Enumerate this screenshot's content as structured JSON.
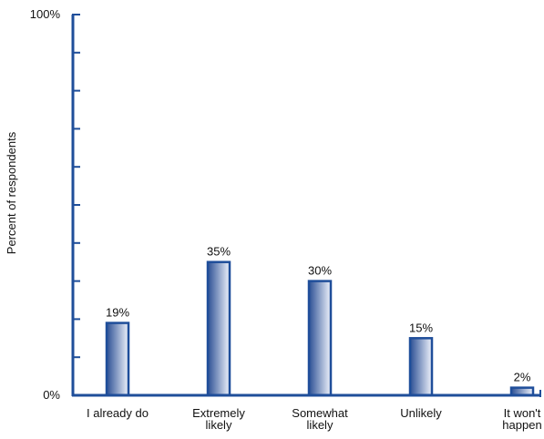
{
  "chart_data": {
    "type": "bar",
    "title": "",
    "xlabel": "",
    "ylabel": "Percent of respondents",
    "categories": [
      [
        "I already do"
      ],
      [
        "Extremely",
        "likely"
      ],
      [
        "Somewhat",
        "likely"
      ],
      [
        "Unlikely"
      ],
      [
        "It won't",
        "happen"
      ]
    ],
    "values": [
      19,
      35,
      30,
      15,
      2
    ],
    "value_labels": [
      "19%",
      "35%",
      "30%",
      "15%",
      "2%"
    ],
    "ylim": [
      0,
      100
    ],
    "y_tick_labels": [
      "0%",
      "100%"
    ],
    "grid": false,
    "legend": "none",
    "colors": {
      "axis": "#1f4e9a",
      "bar_edge": "#1f4e9a",
      "bar_dark": "#2b4f94",
      "bar_light": "#eef2fb"
    }
  }
}
